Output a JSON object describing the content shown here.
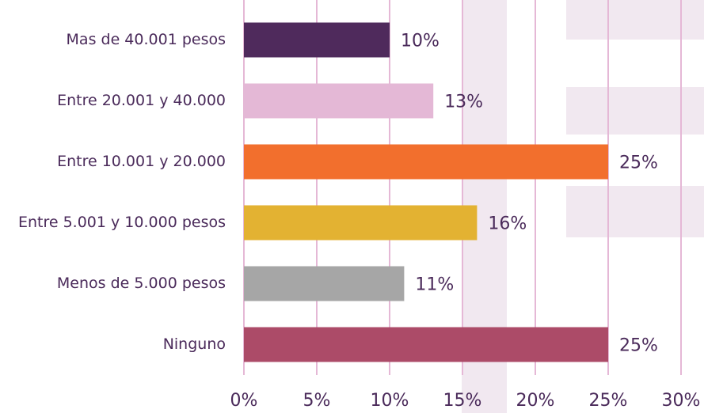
{
  "chart_data": {
    "type": "bar",
    "orientation": "horizontal",
    "categories": [
      "Mas de 40.001 pesos",
      "Entre 20.001 y 40.000",
      "Entre 10.001 y 20.000",
      "Entre 5.001 y 10.000 pesos",
      "Menos de 5.000 pesos",
      "Ninguno"
    ],
    "values": [
      10,
      13,
      25,
      16,
      11,
      25
    ],
    "value_labels": [
      "10%",
      "13%",
      "25%",
      "16%",
      "11%",
      "25%"
    ],
    "colors": [
      "#4f2a5c",
      "#e4b8d6",
      "#f26f2d",
      "#e3b232",
      "#a6a6a6",
      "#ac4b68"
    ],
    "xlim": [
      0,
      30
    ],
    "xticks": [
      {
        "value": 0,
        "label": "0%"
      },
      {
        "value": 5,
        "label": "5%"
      },
      {
        "value": 10,
        "label": "10%"
      },
      {
        "value": 15,
        "label": "15%"
      },
      {
        "value": 20,
        "label": "20%"
      },
      {
        "value": 25,
        "label": "25%"
      },
      {
        "value": 30,
        "label": "30%"
      }
    ],
    "grid": true,
    "grid_color": "#e5b8d6"
  }
}
